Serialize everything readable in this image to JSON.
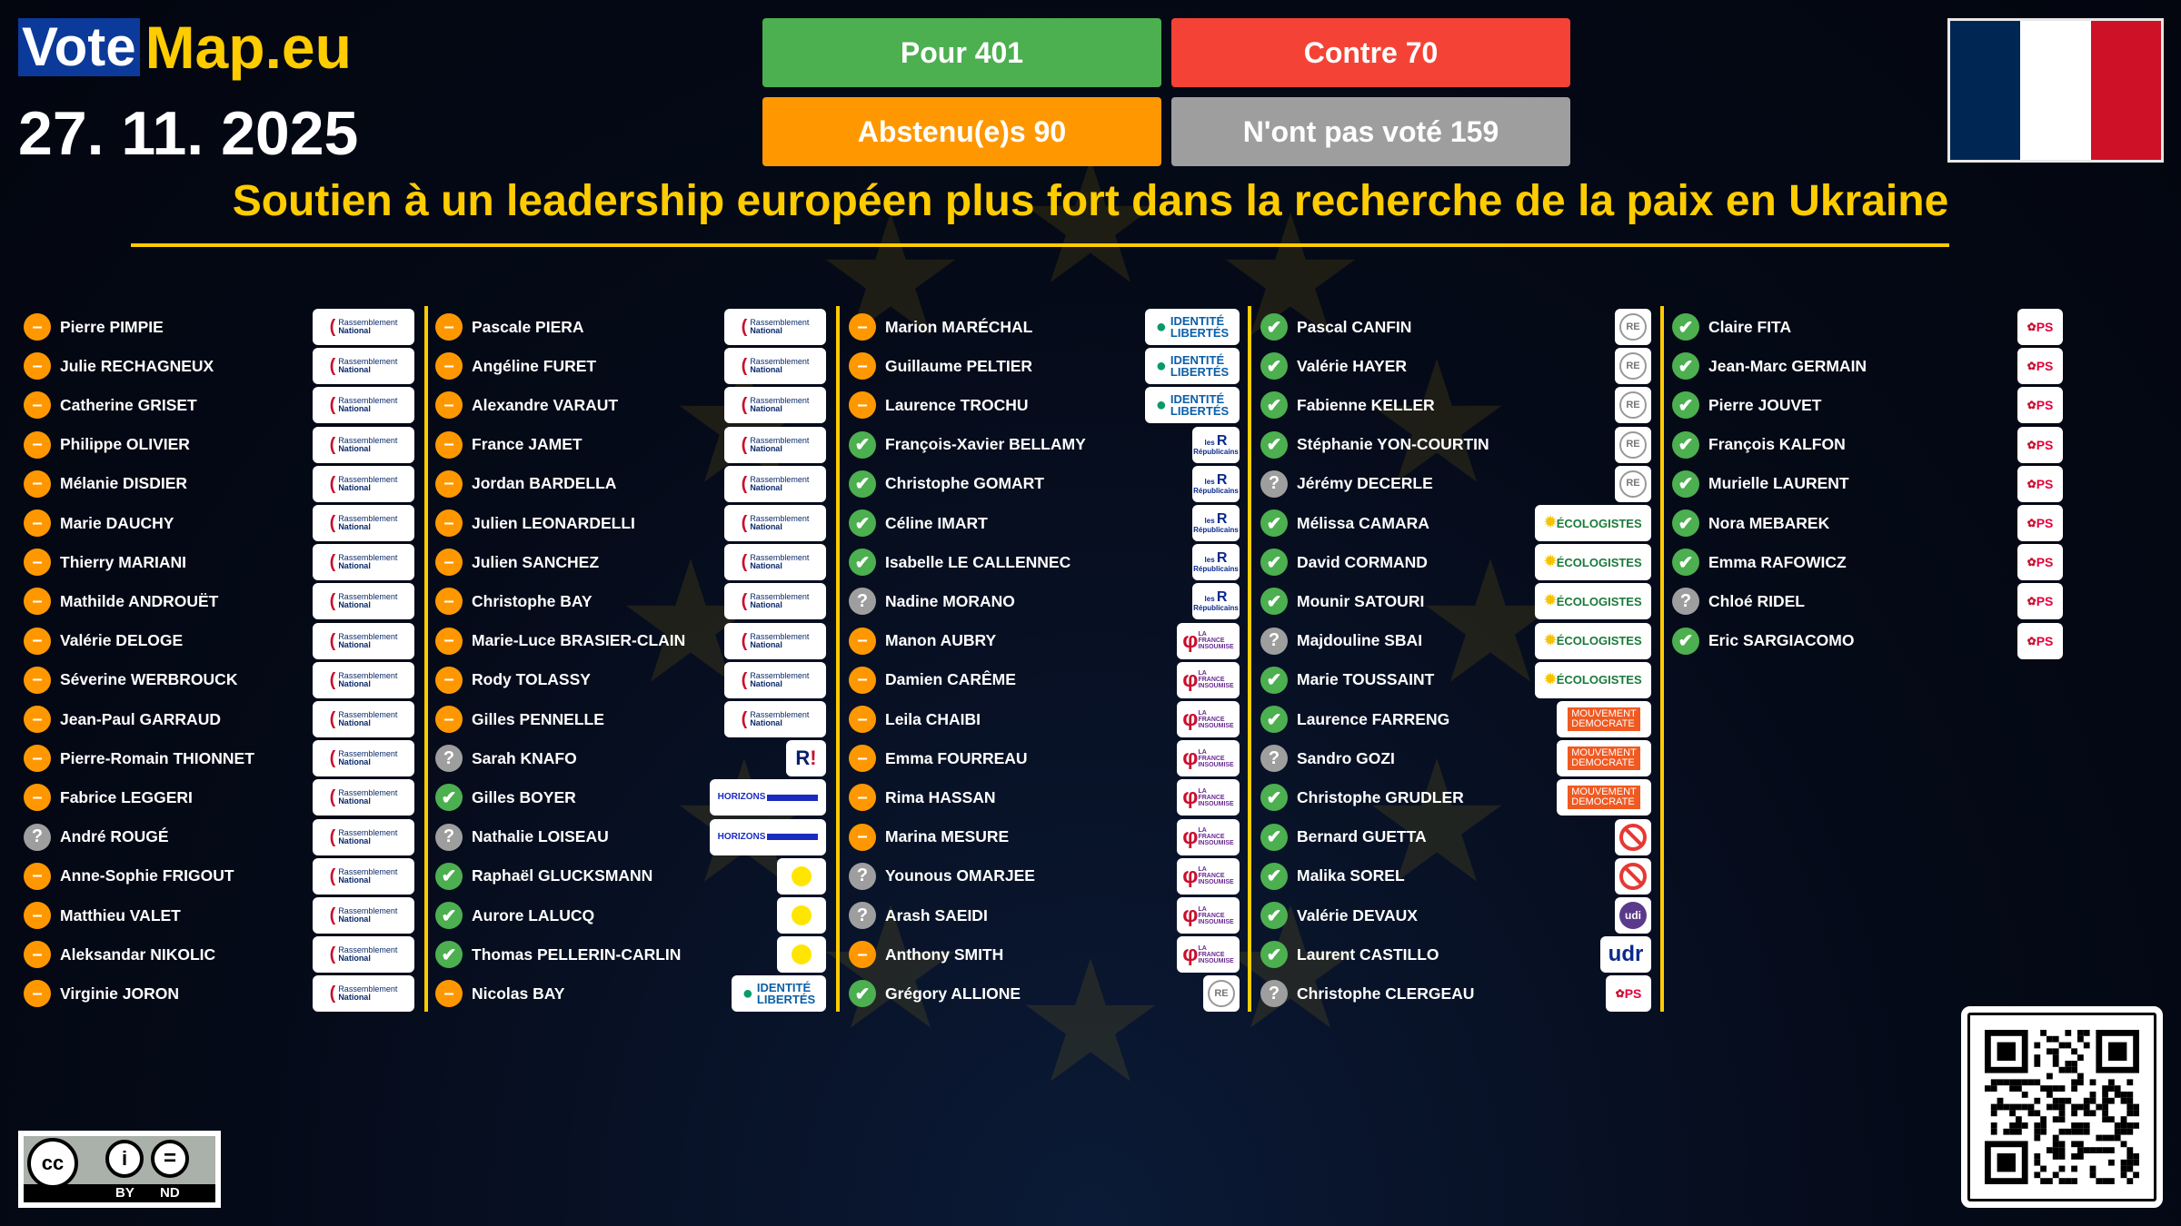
{
  "brand": {
    "vote": "Vote",
    "map": "Map.eu"
  },
  "date": "27. 11. 2025",
  "tally": {
    "for": "Pour 401",
    "against": "Contre 70",
    "abstain": "Abstenu(e)s 90",
    "absent": "N'ont pas voté 159"
  },
  "colors": {
    "for": "#4caf50",
    "against": "#f44336",
    "abstain": "#ff9800",
    "absent": "#9e9e9e",
    "accent": "#ffcc00",
    "flag": [
      "#002654",
      "#ffffff",
      "#ce1126"
    ]
  },
  "title": "Soutien à un leadership européen plus fort dans la recherche de la paix en Ukraine",
  "vote_icons": {
    "for": "✔",
    "abstain": "–",
    "absent": "?"
  },
  "parties": {
    "RN": {
      "logo": "Rassemblement National"
    },
    "IDL": {
      "logo": "IDENTITÉ LIBERTÉS"
    },
    "LR": {
      "logo": "les Républicains"
    },
    "LFI": {
      "logo": "LA FRANCE INSOUMISE"
    },
    "RE": {
      "logo": "RE"
    },
    "ECO": {
      "logo": "LES ÉCOLOGISTES"
    },
    "MODEM": {
      "logo": "MOUVEMENT DEMOCRATE"
    },
    "PS": {
      "logo": "PS"
    },
    "HOR": {
      "logo": "HORIZONS"
    },
    "PP": {
      "logo": "place publique"
    },
    "REC": {
      "logo": "R!"
    },
    "UDR": {
      "logo": "udr"
    },
    "UDI": {
      "logo": "udi"
    },
    "NONE": {
      "logo": "no-party-icon"
    }
  },
  "columns": [
    [
      {
        "name": "Pierre PIMPIE",
        "vote": "abstain",
        "party": "RN"
      },
      {
        "name": "Julie RECHAGNEUX",
        "vote": "abstain",
        "party": "RN"
      },
      {
        "name": "Catherine GRISET",
        "vote": "abstain",
        "party": "RN"
      },
      {
        "name": "Philippe OLIVIER",
        "vote": "abstain",
        "party": "RN"
      },
      {
        "name": "Mélanie DISDIER",
        "vote": "abstain",
        "party": "RN"
      },
      {
        "name": "Marie DAUCHY",
        "vote": "abstain",
        "party": "RN"
      },
      {
        "name": "Thierry MARIANI",
        "vote": "abstain",
        "party": "RN"
      },
      {
        "name": "Mathilde ANDROUËT",
        "vote": "abstain",
        "party": "RN"
      },
      {
        "name": "Valérie DELOGE",
        "vote": "abstain",
        "party": "RN"
      },
      {
        "name": "Séverine WERBROUCK",
        "vote": "abstain",
        "party": "RN"
      },
      {
        "name": "Jean-Paul GARRAUD",
        "vote": "abstain",
        "party": "RN"
      },
      {
        "name": "Pierre-Romain THIONNET",
        "vote": "abstain",
        "party": "RN"
      },
      {
        "name": "Fabrice LEGGERI",
        "vote": "abstain",
        "party": "RN"
      },
      {
        "name": "André ROUGÉ",
        "vote": "absent",
        "party": "RN"
      },
      {
        "name": "Anne-Sophie FRIGOUT",
        "vote": "abstain",
        "party": "RN"
      },
      {
        "name": "Matthieu VALET",
        "vote": "abstain",
        "party": "RN"
      },
      {
        "name": "Aleksandar NIKOLIC",
        "vote": "abstain",
        "party": "RN"
      },
      {
        "name": "Virginie JORON",
        "vote": "abstain",
        "party": "RN"
      }
    ],
    [
      {
        "name": "Pascale PIERA",
        "vote": "abstain",
        "party": "RN"
      },
      {
        "name": "Angéline FURET",
        "vote": "abstain",
        "party": "RN"
      },
      {
        "name": "Alexandre VARAUT",
        "vote": "abstain",
        "party": "RN"
      },
      {
        "name": "France JAMET",
        "vote": "abstain",
        "party": "RN"
      },
      {
        "name": "Jordan BARDELLA",
        "vote": "abstain",
        "party": "RN"
      },
      {
        "name": "Julien LEONARDELLI",
        "vote": "abstain",
        "party": "RN"
      },
      {
        "name": "Julien SANCHEZ",
        "vote": "abstain",
        "party": "RN"
      },
      {
        "name": "Christophe BAY",
        "vote": "abstain",
        "party": "RN"
      },
      {
        "name": "Marie-Luce BRASIER-CLAIN",
        "vote": "abstain",
        "party": "RN"
      },
      {
        "name": "Rody TOLASSY",
        "vote": "abstain",
        "party": "RN"
      },
      {
        "name": "Gilles PENNELLE",
        "vote": "abstain",
        "party": "RN"
      },
      {
        "name": "Sarah KNAFO",
        "vote": "absent",
        "party": "REC"
      },
      {
        "name": "Gilles BOYER",
        "vote": "for",
        "party": "HOR"
      },
      {
        "name": "Nathalie LOISEAU",
        "vote": "absent",
        "party": "HOR"
      },
      {
        "name": "Raphaël GLUCKSMANN",
        "vote": "for",
        "party": "PP"
      },
      {
        "name": "Aurore LALUCQ",
        "vote": "for",
        "party": "PP"
      },
      {
        "name": "Thomas PELLERIN-CARLIN",
        "vote": "for",
        "party": "PP"
      },
      {
        "name": "Nicolas BAY",
        "vote": "abstain",
        "party": "IDL"
      }
    ],
    [
      {
        "name": "Marion MARÉCHAL",
        "vote": "abstain",
        "party": "IDL"
      },
      {
        "name": "Guillaume PELTIER",
        "vote": "abstain",
        "party": "IDL"
      },
      {
        "name": "Laurence TROCHU",
        "vote": "abstain",
        "party": "IDL"
      },
      {
        "name": "François-Xavier BELLAMY",
        "vote": "for",
        "party": "LR"
      },
      {
        "name": "Christophe GOMART",
        "vote": "for",
        "party": "LR"
      },
      {
        "name": "Céline IMART",
        "vote": "for",
        "party": "LR"
      },
      {
        "name": "Isabelle LE CALLENNEC",
        "vote": "for",
        "party": "LR"
      },
      {
        "name": "Nadine MORANO",
        "vote": "absent",
        "party": "LR"
      },
      {
        "name": "Manon AUBRY",
        "vote": "abstain",
        "party": "LFI"
      },
      {
        "name": "Damien CARÊME",
        "vote": "abstain",
        "party": "LFI"
      },
      {
        "name": "Leila CHAIBI",
        "vote": "abstain",
        "party": "LFI"
      },
      {
        "name": "Emma FOURREAU",
        "vote": "abstain",
        "party": "LFI"
      },
      {
        "name": "Rima HASSAN",
        "vote": "abstain",
        "party": "LFI"
      },
      {
        "name": "Marina MESURE",
        "vote": "abstain",
        "party": "LFI"
      },
      {
        "name": "Younous OMARJEE",
        "vote": "absent",
        "party": "LFI"
      },
      {
        "name": "Arash SAEIDI",
        "vote": "absent",
        "party": "LFI"
      },
      {
        "name": "Anthony SMITH",
        "vote": "abstain",
        "party": "LFI"
      },
      {
        "name": "Grégory ALLIONE",
        "vote": "for",
        "party": "RE"
      }
    ],
    [
      {
        "name": "Pascal CANFIN",
        "vote": "for",
        "party": "RE"
      },
      {
        "name": "Valérie HAYER",
        "vote": "for",
        "party": "RE"
      },
      {
        "name": "Fabienne KELLER",
        "vote": "for",
        "party": "RE"
      },
      {
        "name": "Stéphanie YON-COURTIN",
        "vote": "for",
        "party": "RE"
      },
      {
        "name": "Jérémy DECERLE",
        "vote": "absent",
        "party": "RE"
      },
      {
        "name": "Mélissa CAMARA",
        "vote": "for",
        "party": "ECO"
      },
      {
        "name": "David CORMAND",
        "vote": "for",
        "party": "ECO"
      },
      {
        "name": "Mounir SATOURI",
        "vote": "for",
        "party": "ECO"
      },
      {
        "name": "Majdouline SBAI",
        "vote": "absent",
        "party": "ECO"
      },
      {
        "name": "Marie TOUSSAINT",
        "vote": "for",
        "party": "ECO"
      },
      {
        "name": "Laurence FARRENG",
        "vote": "for",
        "party": "MODEM"
      },
      {
        "name": "Sandro GOZI",
        "vote": "absent",
        "party": "MODEM"
      },
      {
        "name": "Christophe GRUDLER",
        "vote": "for",
        "party": "MODEM"
      },
      {
        "name": "Bernard GUETTA",
        "vote": "for",
        "party": "NONE"
      },
      {
        "name": "Malika SOREL",
        "vote": "for",
        "party": "NONE"
      },
      {
        "name": "Valérie DEVAUX",
        "vote": "for",
        "party": "UDI"
      },
      {
        "name": "Laurent CASTILLO",
        "vote": "for",
        "party": "UDR"
      },
      {
        "name": "Christophe CLERGEAU",
        "vote": "absent",
        "party": "PS"
      }
    ],
    [
      {
        "name": "Claire FITA",
        "vote": "for",
        "party": "PS"
      },
      {
        "name": "Jean-Marc GERMAIN",
        "vote": "for",
        "party": "PS"
      },
      {
        "name": "Pierre JOUVET",
        "vote": "for",
        "party": "PS"
      },
      {
        "name": "François KALFON",
        "vote": "for",
        "party": "PS"
      },
      {
        "name": "Murielle LAURENT",
        "vote": "for",
        "party": "PS"
      },
      {
        "name": "Nora MEBAREK",
        "vote": "for",
        "party": "PS"
      },
      {
        "name": "Emma RAFOWICZ",
        "vote": "for",
        "party": "PS"
      },
      {
        "name": "Chloé RIDEL",
        "vote": "absent",
        "party": "PS"
      },
      {
        "name": "Eric SARGIACOMO",
        "vote": "for",
        "party": "PS"
      }
    ]
  ],
  "license": {
    "by": "BY",
    "nd": "ND",
    "cc": "cc"
  }
}
